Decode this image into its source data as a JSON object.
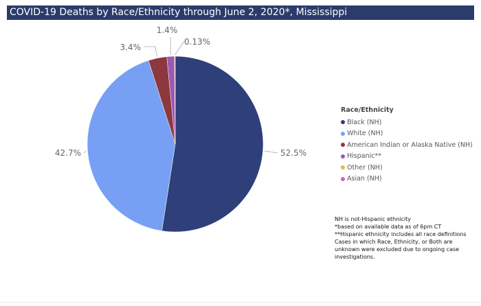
{
  "chart_data": {
    "type": "pie",
    "title": "COVID-19 Deaths by Race/Ethnicity through June 2, 2020*, Mississippi",
    "legend_title": "Race/Ethnicity",
    "legend_position": "right",
    "slices": [
      {
        "name": "Black (NH)",
        "value": 52.5,
        "label": "52.5%",
        "color": "#2e3f7a"
      },
      {
        "name": "White (NH)",
        "value": 42.7,
        "label": "42.7%",
        "color": "#77a0f4"
      },
      {
        "name": "American Indian or Alaska Native (NH)",
        "value": 3.4,
        "label": "3.4%",
        "color": "#8c383e"
      },
      {
        "name": "Hispanic**",
        "value": 1.4,
        "label": "1.4%",
        "color": "#9b59b6"
      },
      {
        "name": "Other (NH)",
        "value": 0.13,
        "label": "0.13%",
        "color": "#d9bd45"
      },
      {
        "name": "Asian (NH)",
        "value": 0,
        "label": "",
        "color": "#d35fb7"
      }
    ]
  },
  "notes": [
    "NH is not-Hispanic ethnicity",
    "*based on available data as of 6pm CT",
    "**Hispanic ethnicity includes all race definitions",
    "Cases in which Race, Ethnicity, or Both are unknown were excluded due to ongoing case investigations."
  ]
}
